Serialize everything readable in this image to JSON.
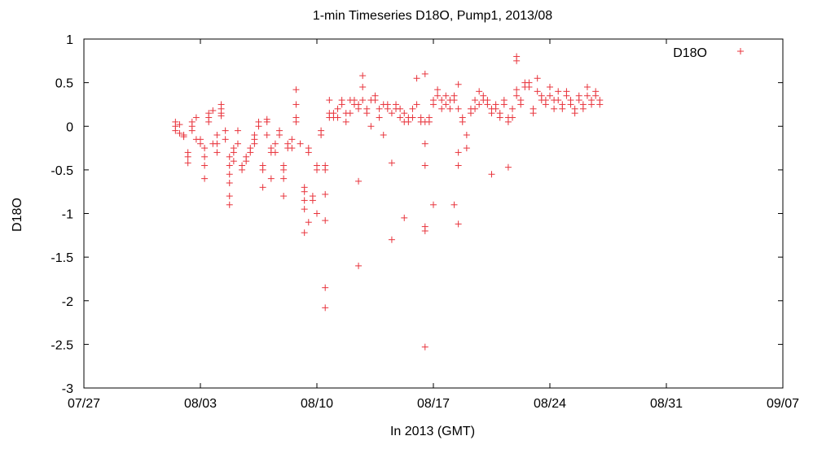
{
  "chart_data": {
    "type": "scatter",
    "title": "1-min Timeseries D18O, Pump1, 2013/08",
    "xlabel": "In 2013 (GMT)",
    "ylabel": "D18O",
    "xlim": [
      "2013-07-27",
      "2013-09-07"
    ],
    "ylim": [
      -3,
      1
    ],
    "xticks": [
      "07/27",
      "08/03",
      "08/10",
      "08/17",
      "08/24",
      "08/31",
      "09/07"
    ],
    "yticks": [
      "-3",
      "-2.5",
      "-2",
      "-1.5",
      "-1",
      "-0.5",
      "0",
      "0.5",
      "1"
    ],
    "grid": false,
    "legend": {
      "position": "top-right",
      "label": "D18O"
    },
    "marker": {
      "shape": "plus",
      "color": "#e8343c"
    },
    "series": [
      {
        "name": "D18O",
        "points": [
          [
            "2013-08-01T12:00",
            0.05
          ],
          [
            "2013-08-01T12:00",
            0.0
          ],
          [
            "2013-08-01T12:00",
            -0.05
          ],
          [
            "2013-08-01T18:00",
            0.02
          ],
          [
            "2013-08-01T18:00",
            -0.08
          ],
          [
            "2013-08-02T00:00",
            -0.1
          ],
          [
            "2013-08-02T00:00",
            -0.12
          ],
          [
            "2013-08-02T06:00",
            -0.3
          ],
          [
            "2013-08-02T06:00",
            -0.35
          ],
          [
            "2013-08-02T06:00",
            -0.42
          ],
          [
            "2013-08-02T12:00",
            0.05
          ],
          [
            "2013-08-02T12:00",
            0.0
          ],
          [
            "2013-08-02T12:00",
            -0.05
          ],
          [
            "2013-08-02T18:00",
            0.1
          ],
          [
            "2013-08-02T18:00",
            -0.15
          ],
          [
            "2013-08-03T00:00",
            -0.15
          ],
          [
            "2013-08-03T00:00",
            -0.2
          ],
          [
            "2013-08-03T06:00",
            -0.25
          ],
          [
            "2013-08-03T06:00",
            -0.35
          ],
          [
            "2013-08-03T06:00",
            -0.45
          ],
          [
            "2013-08-03T06:00",
            -0.6
          ],
          [
            "2013-08-03T12:00",
            0.15
          ],
          [
            "2013-08-03T12:00",
            0.1
          ],
          [
            "2013-08-03T12:00",
            0.05
          ],
          [
            "2013-08-03T18:00",
            0.18
          ],
          [
            "2013-08-03T18:00",
            -0.2
          ],
          [
            "2013-08-04T00:00",
            -0.1
          ],
          [
            "2013-08-04T00:00",
            -0.2
          ],
          [
            "2013-08-04T00:00",
            -0.3
          ],
          [
            "2013-08-04T06:00",
            0.25
          ],
          [
            "2013-08-04T06:00",
            0.2
          ],
          [
            "2013-08-04T06:00",
            0.15
          ],
          [
            "2013-08-04T06:00",
            0.12
          ],
          [
            "2013-08-04T12:00",
            -0.05
          ],
          [
            "2013-08-04T12:00",
            -0.15
          ],
          [
            "2013-08-04T18:00",
            -0.35
          ],
          [
            "2013-08-04T18:00",
            -0.45
          ],
          [
            "2013-08-04T18:00",
            -0.55
          ],
          [
            "2013-08-04T18:00",
            -0.65
          ],
          [
            "2013-08-04T18:00",
            -0.8
          ],
          [
            "2013-08-04T18:00",
            -0.9
          ],
          [
            "2013-08-05T00:00",
            -0.25
          ],
          [
            "2013-08-05T00:00",
            -0.3
          ],
          [
            "2013-08-05T00:00",
            -0.4
          ],
          [
            "2013-08-05T06:00",
            -0.05
          ],
          [
            "2013-08-05T06:00",
            -0.2
          ],
          [
            "2013-08-05T12:00",
            -0.45
          ],
          [
            "2013-08-05T12:00",
            -0.5
          ],
          [
            "2013-08-05T18:00",
            -0.35
          ],
          [
            "2013-08-05T18:00",
            -0.4
          ],
          [
            "2013-08-06T00:00",
            -0.25
          ],
          [
            "2013-08-06T00:00",
            -0.3
          ],
          [
            "2013-08-06T06:00",
            -0.1
          ],
          [
            "2013-08-06T06:00",
            -0.15
          ],
          [
            "2013-08-06T06:00",
            -0.2
          ],
          [
            "2013-08-06T12:00",
            0.05
          ],
          [
            "2013-08-06T12:00",
            0.0
          ],
          [
            "2013-08-06T18:00",
            -0.45
          ],
          [
            "2013-08-06T18:00",
            -0.5
          ],
          [
            "2013-08-06T18:00",
            -0.7
          ],
          [
            "2013-08-07T00:00",
            0.08
          ],
          [
            "2013-08-07T00:00",
            0.05
          ],
          [
            "2013-08-07T00:00",
            -0.1
          ],
          [
            "2013-08-07T06:00",
            -0.25
          ],
          [
            "2013-08-07T06:00",
            -0.3
          ],
          [
            "2013-08-07T06:00",
            -0.6
          ],
          [
            "2013-08-07T12:00",
            -0.2
          ],
          [
            "2013-08-07T12:00",
            -0.3
          ],
          [
            "2013-08-07T18:00",
            -0.05
          ],
          [
            "2013-08-07T18:00",
            -0.1
          ],
          [
            "2013-08-08T00:00",
            -0.45
          ],
          [
            "2013-08-08T00:00",
            -0.5
          ],
          [
            "2013-08-08T00:00",
            -0.6
          ],
          [
            "2013-08-08T00:00",
            -0.8
          ],
          [
            "2013-08-08T06:00",
            -0.2
          ],
          [
            "2013-08-08T06:00",
            -0.25
          ],
          [
            "2013-08-08T12:00",
            -0.15
          ],
          [
            "2013-08-08T12:00",
            -0.25
          ],
          [
            "2013-08-08T18:00",
            0.42
          ],
          [
            "2013-08-08T18:00",
            0.25
          ],
          [
            "2013-08-08T18:00",
            0.1
          ],
          [
            "2013-08-08T18:00",
            0.05
          ],
          [
            "2013-08-09T00:00",
            -0.2
          ],
          [
            "2013-08-09T06:00",
            -0.7
          ],
          [
            "2013-08-09T06:00",
            -0.75
          ],
          [
            "2013-08-09T06:00",
            -0.85
          ],
          [
            "2013-08-09T06:00",
            -0.95
          ],
          [
            "2013-08-09T06:00",
            -1.22
          ],
          [
            "2013-08-09T12:00",
            -0.25
          ],
          [
            "2013-08-09T12:00",
            -0.3
          ],
          [
            "2013-08-09T12:00",
            -1.1
          ],
          [
            "2013-08-09T18:00",
            -0.8
          ],
          [
            "2013-08-09T18:00",
            -0.85
          ],
          [
            "2013-08-10T00:00",
            -0.45
          ],
          [
            "2013-08-10T00:00",
            -0.5
          ],
          [
            "2013-08-10T00:00",
            -1.0
          ],
          [
            "2013-08-10T06:00",
            -0.05
          ],
          [
            "2013-08-10T06:00",
            -0.1
          ],
          [
            "2013-08-10T12:00",
            -0.45
          ],
          [
            "2013-08-10T12:00",
            -0.5
          ],
          [
            "2013-08-10T12:00",
            -0.78
          ],
          [
            "2013-08-10T12:00",
            -1.08
          ],
          [
            "2013-08-10T12:00",
            -1.85
          ],
          [
            "2013-08-10T12:00",
            -2.08
          ],
          [
            "2013-08-10T18:00",
            0.3
          ],
          [
            "2013-08-10T18:00",
            0.15
          ],
          [
            "2013-08-10T18:00",
            0.1
          ],
          [
            "2013-08-11T00:00",
            0.15
          ],
          [
            "2013-08-11T00:00",
            0.1
          ],
          [
            "2013-08-11T06:00",
            0.2
          ],
          [
            "2013-08-11T06:00",
            0.1
          ],
          [
            "2013-08-11T12:00",
            0.3
          ],
          [
            "2013-08-11T12:00",
            0.25
          ],
          [
            "2013-08-11T18:00",
            0.15
          ],
          [
            "2013-08-11T18:00",
            0.05
          ],
          [
            "2013-08-12T00:00",
            0.3
          ],
          [
            "2013-08-12T00:00",
            0.15
          ],
          [
            "2013-08-12T06:00",
            0.3
          ],
          [
            "2013-08-12T06:00",
            0.25
          ],
          [
            "2013-08-12T12:00",
            0.2
          ],
          [
            "2013-08-12T12:00",
            0.25
          ],
          [
            "2013-08-12T12:00",
            -0.63
          ],
          [
            "2013-08-12T12:00",
            -1.6
          ],
          [
            "2013-08-12T18:00",
            0.58
          ],
          [
            "2013-08-12T18:00",
            0.45
          ],
          [
            "2013-08-12T18:00",
            0.3
          ],
          [
            "2013-08-13T00:00",
            0.15
          ],
          [
            "2013-08-13T00:00",
            0.2
          ],
          [
            "2013-08-13T06:00",
            0.3
          ],
          [
            "2013-08-13T06:00",
            0.0
          ],
          [
            "2013-08-13T12:00",
            0.35
          ],
          [
            "2013-08-13T12:00",
            0.3
          ],
          [
            "2013-08-13T18:00",
            0.2
          ],
          [
            "2013-08-13T18:00",
            0.1
          ],
          [
            "2013-08-14T00:00",
            0.25
          ],
          [
            "2013-08-14T00:00",
            -0.1
          ],
          [
            "2013-08-14T06:00",
            0.25
          ],
          [
            "2013-08-14T06:00",
            0.2
          ],
          [
            "2013-08-14T12:00",
            0.15
          ],
          [
            "2013-08-14T12:00",
            -0.42
          ],
          [
            "2013-08-14T12:00",
            -1.3
          ],
          [
            "2013-08-14T18:00",
            0.25
          ],
          [
            "2013-08-14T18:00",
            0.2
          ],
          [
            "2013-08-15T00:00",
            0.2
          ],
          [
            "2013-08-15T00:00",
            0.1
          ],
          [
            "2013-08-15T06:00",
            0.15
          ],
          [
            "2013-08-15T06:00",
            0.05
          ],
          [
            "2013-08-15T06:00",
            -1.05
          ],
          [
            "2013-08-15T12:00",
            0.1
          ],
          [
            "2013-08-15T12:00",
            0.05
          ],
          [
            "2013-08-15T18:00",
            0.2
          ],
          [
            "2013-08-15T18:00",
            0.1
          ],
          [
            "2013-08-16T00:00",
            0.25
          ],
          [
            "2013-08-16T00:00",
            0.55
          ],
          [
            "2013-08-16T06:00",
            0.1
          ],
          [
            "2013-08-16T06:00",
            0.05
          ],
          [
            "2013-08-16T12:00",
            0.6
          ],
          [
            "2013-08-16T12:00",
            0.05
          ],
          [
            "2013-08-16T12:00",
            -0.2
          ],
          [
            "2013-08-16T12:00",
            -0.45
          ],
          [
            "2013-08-16T12:00",
            -1.15
          ],
          [
            "2013-08-16T12:00",
            -1.2
          ],
          [
            "2013-08-16T12:00",
            -2.53
          ],
          [
            "2013-08-16T18:00",
            0.1
          ],
          [
            "2013-08-16T18:00",
            0.05
          ],
          [
            "2013-08-17T00:00",
            0.3
          ],
          [
            "2013-08-17T00:00",
            0.25
          ],
          [
            "2013-08-17T00:00",
            -0.9
          ],
          [
            "2013-08-17T06:00",
            0.42
          ],
          [
            "2013-08-17T06:00",
            0.35
          ],
          [
            "2013-08-17T12:00",
            0.3
          ],
          [
            "2013-08-17T12:00",
            0.2
          ],
          [
            "2013-08-17T18:00",
            0.35
          ],
          [
            "2013-08-17T18:00",
            0.25
          ],
          [
            "2013-08-18T00:00",
            0.3
          ],
          [
            "2013-08-18T00:00",
            0.2
          ],
          [
            "2013-08-18T06:00",
            0.35
          ],
          [
            "2013-08-18T06:00",
            0.3
          ],
          [
            "2013-08-18T06:00",
            -0.9
          ],
          [
            "2013-08-18T12:00",
            0.48
          ],
          [
            "2013-08-18T12:00",
            0.2
          ],
          [
            "2013-08-18T12:00",
            -0.3
          ],
          [
            "2013-08-18T12:00",
            -0.45
          ],
          [
            "2013-08-18T12:00",
            -1.12
          ],
          [
            "2013-08-18T18:00",
            0.1
          ],
          [
            "2013-08-18T18:00",
            0.05
          ],
          [
            "2013-08-19T00:00",
            -0.1
          ],
          [
            "2013-08-19T00:00",
            -0.25
          ],
          [
            "2013-08-19T06:00",
            0.15
          ],
          [
            "2013-08-19T06:00",
            0.2
          ],
          [
            "2013-08-19T12:00",
            0.3
          ],
          [
            "2013-08-19T12:00",
            0.2
          ],
          [
            "2013-08-19T18:00",
            0.4
          ],
          [
            "2013-08-19T18:00",
            0.25
          ],
          [
            "2013-08-20T00:00",
            0.35
          ],
          [
            "2013-08-20T00:00",
            0.3
          ],
          [
            "2013-08-20T06:00",
            0.3
          ],
          [
            "2013-08-20T06:00",
            0.25
          ],
          [
            "2013-08-20T12:00",
            0.2
          ],
          [
            "2013-08-20T12:00",
            0.15
          ],
          [
            "2013-08-20T12:00",
            -0.55
          ],
          [
            "2013-08-20T18:00",
            0.25
          ],
          [
            "2013-08-20T18:00",
            0.2
          ],
          [
            "2013-08-21T00:00",
            0.15
          ],
          [
            "2013-08-21T00:00",
            0.1
          ],
          [
            "2013-08-21T06:00",
            0.3
          ],
          [
            "2013-08-21T06:00",
            0.25
          ],
          [
            "2013-08-21T12:00",
            0.1
          ],
          [
            "2013-08-21T12:00",
            0.05
          ],
          [
            "2013-08-21T12:00",
            -0.47
          ],
          [
            "2013-08-21T18:00",
            0.2
          ],
          [
            "2013-08-21T18:00",
            0.1
          ],
          [
            "2013-08-22T00:00",
            0.42
          ],
          [
            "2013-08-22T00:00",
            0.35
          ],
          [
            "2013-08-22T00:00",
            0.8
          ],
          [
            "2013-08-22T00:00",
            0.75
          ],
          [
            "2013-08-22T06:00",
            0.3
          ],
          [
            "2013-08-22T06:00",
            0.25
          ],
          [
            "2013-08-22T12:00",
            0.5
          ],
          [
            "2013-08-22T12:00",
            0.45
          ],
          [
            "2013-08-22T18:00",
            0.5
          ],
          [
            "2013-08-22T18:00",
            0.45
          ],
          [
            "2013-08-23T00:00",
            0.2
          ],
          [
            "2013-08-23T00:00",
            0.15
          ],
          [
            "2013-08-23T06:00",
            0.55
          ],
          [
            "2013-08-23T06:00",
            0.4
          ],
          [
            "2013-08-23T12:00",
            0.35
          ],
          [
            "2013-08-23T12:00",
            0.3
          ],
          [
            "2013-08-23T18:00",
            0.25
          ],
          [
            "2013-08-23T18:00",
            0.3
          ],
          [
            "2013-08-24T00:00",
            0.45
          ],
          [
            "2013-08-24T00:00",
            0.35
          ],
          [
            "2013-08-24T06:00",
            0.3
          ],
          [
            "2013-08-24T06:00",
            0.2
          ],
          [
            "2013-08-24T12:00",
            0.4
          ],
          [
            "2013-08-24T12:00",
            0.3
          ],
          [
            "2013-08-24T18:00",
            0.25
          ],
          [
            "2013-08-24T18:00",
            0.2
          ],
          [
            "2013-08-25T00:00",
            0.35
          ],
          [
            "2013-08-25T00:00",
            0.4
          ],
          [
            "2013-08-25T06:00",
            0.3
          ],
          [
            "2013-08-25T06:00",
            0.25
          ],
          [
            "2013-08-25T12:00",
            0.2
          ],
          [
            "2013-08-25T12:00",
            0.15
          ],
          [
            "2013-08-25T18:00",
            0.3
          ],
          [
            "2013-08-25T18:00",
            0.35
          ],
          [
            "2013-08-26T00:00",
            0.25
          ],
          [
            "2013-08-26T00:00",
            0.2
          ],
          [
            "2013-08-26T06:00",
            0.45
          ],
          [
            "2013-08-26T06:00",
            0.35
          ],
          [
            "2013-08-26T12:00",
            0.3
          ],
          [
            "2013-08-26T12:00",
            0.25
          ],
          [
            "2013-08-26T18:00",
            0.35
          ],
          [
            "2013-08-26T18:00",
            0.4
          ],
          [
            "2013-08-27T00:00",
            0.3
          ],
          [
            "2013-08-27T00:00",
            0.25
          ]
        ]
      }
    ]
  }
}
